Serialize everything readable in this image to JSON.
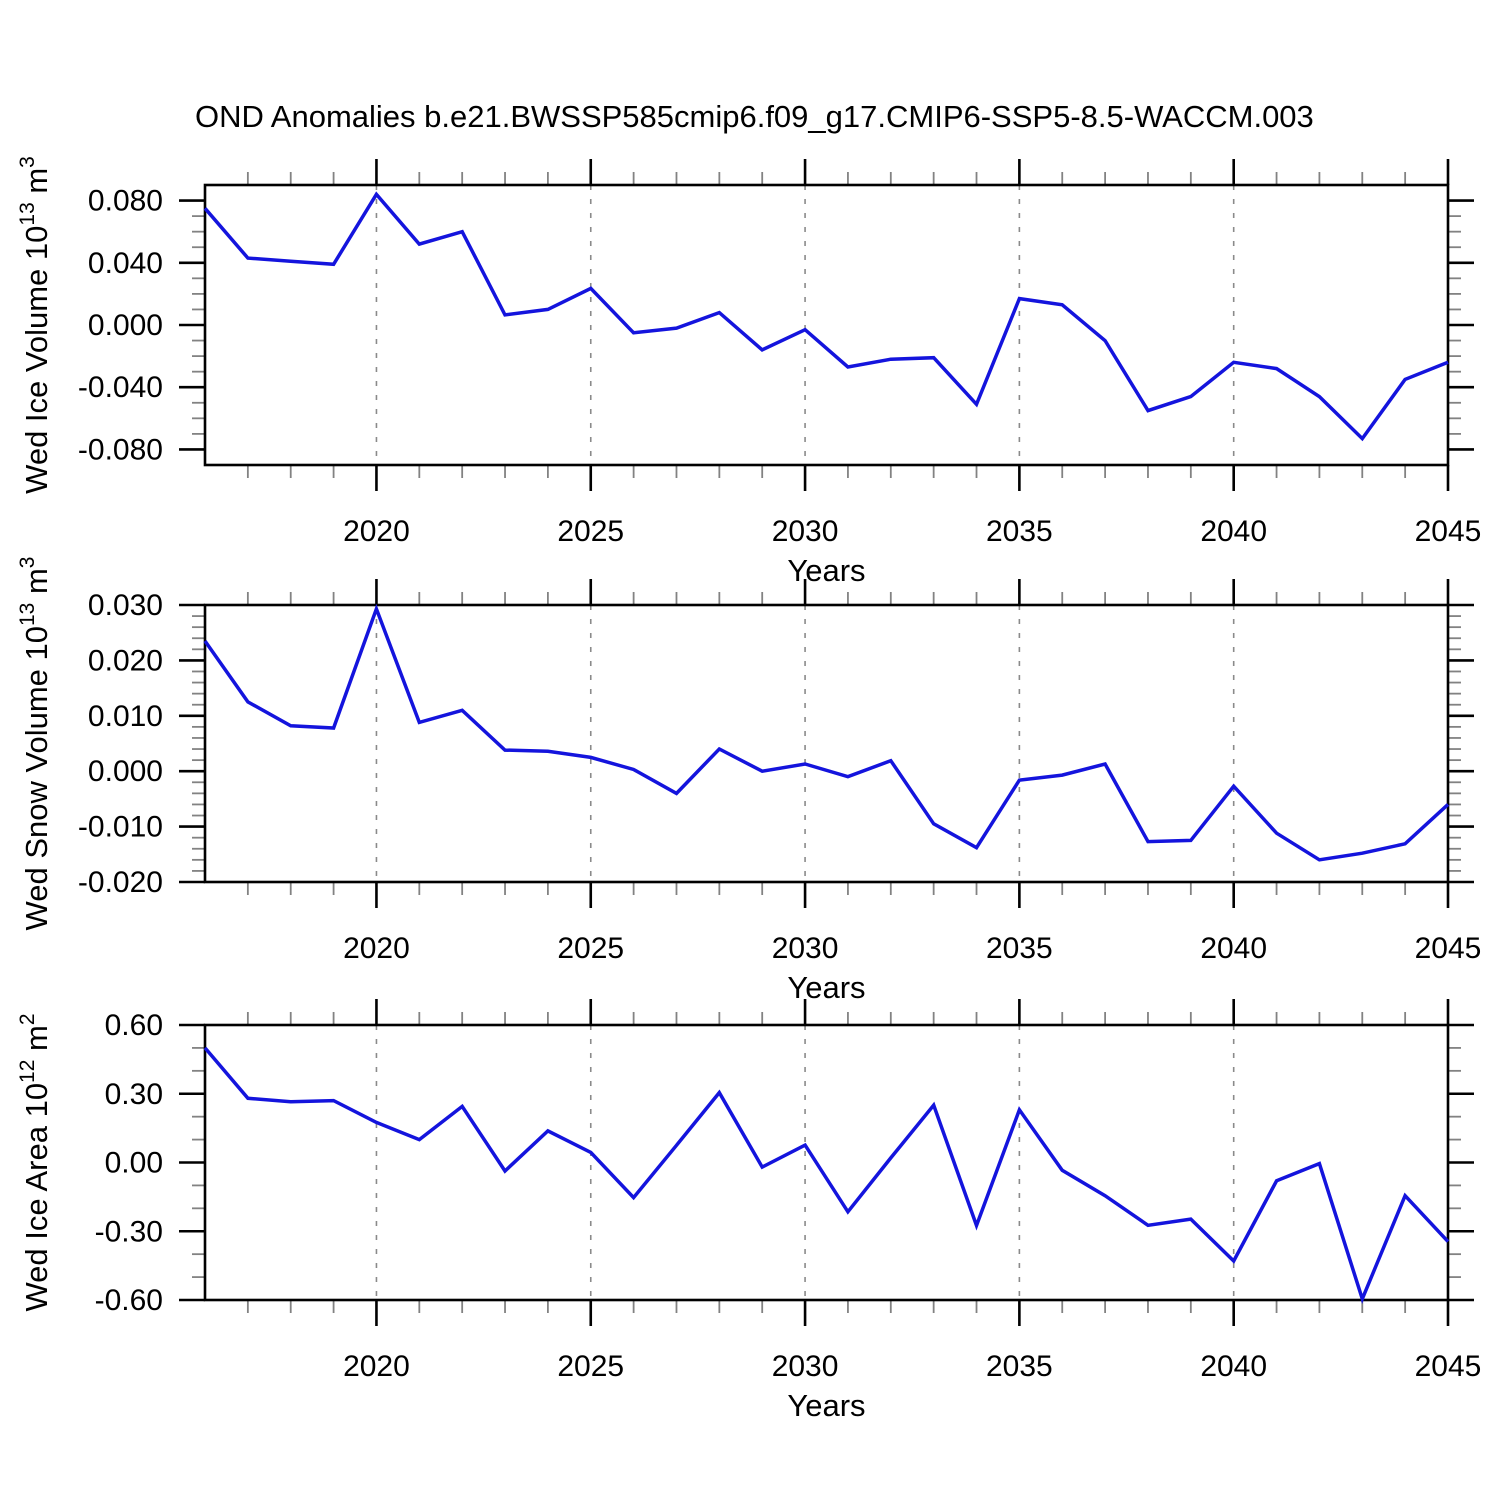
{
  "title": "OND Anomalies b.e21.BWSSP585cmip6.f09_g17.CMIP6-SSP5-8.5-WACCM.003",
  "xlabel": "Years",
  "colors": {
    "line": "#1414dd",
    "axis": "#000000",
    "minor_tick": "#828282",
    "gridline": "#8a8a8a",
    "background": "#ffffff"
  },
  "chart_data": {
    "type": "line",
    "x_range": [
      2016,
      2045
    ],
    "x": [
      2016,
      2017,
      2018,
      2019,
      2020,
      2021,
      2022,
      2023,
      2024,
      2025,
      2026,
      2027,
      2028,
      2029,
      2030,
      2031,
      2032,
      2033,
      2034,
      2035,
      2036,
      2037,
      2038,
      2039,
      2040,
      2041,
      2042,
      2043,
      2044,
      2045
    ],
    "x_major_ticks": [
      {
        "v": 2020,
        "label": "2020"
      },
      {
        "v": 2025,
        "label": "2025"
      },
      {
        "v": 2030,
        "label": "2030"
      },
      {
        "v": 2035,
        "label": "2035"
      },
      {
        "v": 2040,
        "label": "2040"
      },
      {
        "v": 2045,
        "label": "2045"
      }
    ],
    "x_gridlines": [
      2020,
      2025,
      2030,
      2035,
      2040
    ],
    "grid_on": true,
    "legend": "none",
    "panels": [
      {
        "name": "wed-ice-volume",
        "ylabel_text": "Wed Ice Volume 10^13 m^3",
        "ylabel_parts": [
          {
            "text": "Wed Ice Volume 10",
            "sup": false
          },
          {
            "text": "13",
            "sup": true
          },
          {
            "text": " m",
            "sup": false
          },
          {
            "text": "3",
            "sup": true
          }
        ],
        "ylim": [
          -0.09,
          0.09
        ],
        "yticks": [
          {
            "v": 0.08,
            "label": "0.080"
          },
          {
            "v": 0.04,
            "label": "0.040"
          },
          {
            "v": 0.0,
            "label": "0.000"
          },
          {
            "v": -0.04,
            "label": "-0.040"
          },
          {
            "v": -0.08,
            "label": "-0.080"
          }
        ],
        "yminor_step": 0.01,
        "values": [
          0.075,
          0.043,
          0.041,
          0.039,
          0.084,
          0.052,
          0.06,
          0.0065,
          0.01,
          0.0235,
          -0.005,
          -0.002,
          0.008,
          -0.016,
          -0.003,
          -0.027,
          -0.022,
          -0.021,
          -0.051,
          0.017,
          0.013,
          -0.01,
          -0.055,
          -0.046,
          -0.024,
          -0.028,
          -0.046,
          -0.073,
          -0.035,
          -0.024
        ]
      },
      {
        "name": "wed-snow-volume",
        "ylabel_text": "Wed Snow Volume 10^13 m^3",
        "ylabel_parts": [
          {
            "text": "Wed Snow Volume 10",
            "sup": false
          },
          {
            "text": "13",
            "sup": true
          },
          {
            "text": " m",
            "sup": false
          },
          {
            "text": "3",
            "sup": true
          }
        ],
        "ylim": [
          -0.02,
          0.03
        ],
        "yticks": [
          {
            "v": 0.03,
            "label": "0.030"
          },
          {
            "v": 0.02,
            "label": "0.020"
          },
          {
            "v": 0.01,
            "label": "0.010"
          },
          {
            "v": 0.0,
            "label": "0.000"
          },
          {
            "v": -0.01,
            "label": "-0.010"
          },
          {
            "v": -0.02,
            "label": "-0.020"
          }
        ],
        "yminor_step": 0.002,
        "values": [
          0.0235,
          0.0125,
          0.0082,
          0.0078,
          0.0293,
          0.0088,
          0.011,
          0.0038,
          0.0036,
          0.0025,
          0.0003,
          -0.004,
          0.004,
          0.0,
          0.0013,
          -0.001,
          0.0019,
          -0.0095,
          -0.0138,
          -0.0016,
          -0.0007,
          0.0013,
          -0.0127,
          -0.0125,
          -0.0027,
          -0.0112,
          -0.016,
          -0.0148,
          -0.0131,
          -0.006
        ]
      },
      {
        "name": "wed-ice-area",
        "ylabel_text": "Wed Ice Area 10^12 m^2",
        "ylabel_parts": [
          {
            "text": "Wed Ice Area 10",
            "sup": false
          },
          {
            "text": "12",
            "sup": true
          },
          {
            "text": " m",
            "sup": false
          },
          {
            "text": "2",
            "sup": true
          }
        ],
        "ylim": [
          -0.6,
          0.6
        ],
        "yticks": [
          {
            "v": 0.6,
            "label": "0.60"
          },
          {
            "v": 0.3,
            "label": "0.30"
          },
          {
            "v": 0.0,
            "label": "0.00"
          },
          {
            "v": -0.3,
            "label": "-0.30"
          },
          {
            "v": -0.6,
            "label": "-0.60"
          }
        ],
        "yminor_step": 0.1,
        "values": [
          0.5,
          0.28,
          0.265,
          0.27,
          0.175,
          0.1,
          0.245,
          -0.037,
          0.138,
          0.044,
          -0.153,
          0.075,
          0.305,
          -0.02,
          0.076,
          -0.215,
          0.02,
          0.25,
          -0.275,
          0.23,
          -0.034,
          -0.145,
          -0.274,
          -0.247,
          -0.43,
          -0.08,
          -0.005,
          -0.595,
          -0.145,
          -0.345
        ]
      }
    ]
  }
}
